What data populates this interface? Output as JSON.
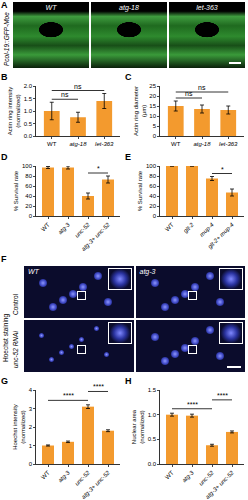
{
  "chart_data": [
    {
      "panel": "B",
      "type": "bar",
      "ylabel": "Actin ring intensity (normalized)",
      "categories": [
        "WT",
        "atg-18",
        "let-363"
      ],
      "values": [
        1.0,
        0.75,
        1.4
      ],
      "errors": [
        0.35,
        0.2,
        0.3
      ],
      "color": "#f39a2e",
      "ylim": [
        0,
        2.0
      ],
      "yticks": [
        {
          "value": 0,
          "label": "0.0"
        },
        {
          "value": 0.5,
          "label": "0.5"
        },
        {
          "value": 1.0,
          "label": "1.0"
        },
        {
          "value": 1.5,
          "label": "1.5"
        },
        {
          "value": 2.0,
          "label": "2.0"
        }
      ],
      "significance": [
        {
          "from": 0,
          "to": 1,
          "label": "ns"
        },
        {
          "from": 0,
          "to": 2,
          "label": "ns"
        }
      ]
    },
    {
      "panel": "C",
      "type": "bar",
      "ylabel": "Actin ring diameter (μm)",
      "categories": [
        "WT",
        "atg-18",
        "let-363"
      ],
      "values": [
        15,
        13.5,
        13
      ],
      "errors": [
        2.5,
        2,
        2
      ],
      "color": "#f39a2e",
      "ylim": [
        0,
        25
      ],
      "yticks": [
        0,
        5,
        10,
        15,
        20,
        25
      ],
      "significance": [
        {
          "from": 0,
          "to": 1,
          "label": "ns"
        },
        {
          "from": 0,
          "to": 2,
          "label": "ns"
        }
      ]
    },
    {
      "panel": "D",
      "type": "bar",
      "ylabel": "% Survival rate",
      "categories": [
        "WT",
        "atg-3",
        "unc-52",
        "atg-3+ unc-52"
      ],
      "values": [
        97,
        97,
        40,
        73
      ],
      "errors": [
        2,
        3,
        6,
        7
      ],
      "color": "#f39a2e",
      "ylim": [
        0,
        100
      ],
      "yticks": [
        0,
        20,
        40,
        60,
        80,
        100
      ],
      "significance": [
        {
          "from": 2,
          "to": 3,
          "label": "*"
        }
      ]
    },
    {
      "panel": "E",
      "type": "bar",
      "ylabel": "% Survival rate",
      "categories": [
        "WT",
        "glt-2",
        "mup-4",
        "glt-2+ mup-4"
      ],
      "values": [
        100,
        100,
        75,
        47
      ],
      "errors": [
        0,
        0,
        4,
        7
      ],
      "color": "#f39a2e",
      "ylim": [
        0,
        100
      ],
      "yticks": [
        0,
        20,
        40,
        60,
        80,
        100
      ],
      "significance": [
        {
          "from": 2,
          "to": 3,
          "label": "*"
        }
      ]
    },
    {
      "panel": "G",
      "type": "bar",
      "ylabel": "Hoechst intensity (normalized)",
      "categories": [
        "WT",
        "atg-3",
        "unc-52",
        "atg-3+ unc-52"
      ],
      "values": [
        1.0,
        1.2,
        3.1,
        1.8
      ],
      "errors": [
        0.03,
        0.04,
        0.1,
        0.05
      ],
      "color": "#f39a2e",
      "ylim": [
        0,
        4
      ],
      "yticks": [
        0,
        1,
        2,
        3,
        4
      ],
      "significance": [
        {
          "from": 0,
          "to": 2,
          "label": "****"
        },
        {
          "from": 2,
          "to": 3,
          "label": "****"
        }
      ]
    },
    {
      "panel": "H",
      "type": "bar",
      "ylabel": "Nuclear area (normalized)",
      "categories": [
        "WT",
        "atg-3",
        "unc-52",
        "atg-3+ unc-52"
      ],
      "values": [
        1.0,
        0.98,
        0.38,
        0.65
      ],
      "errors": [
        0.03,
        0.03,
        0.02,
        0.02
      ],
      "color": "#f39a2e",
      "ylim": [
        0,
        1.5
      ],
      "yticks": [
        {
          "value": 0,
          "label": "0.0"
        },
        {
          "value": 0.5,
          "label": "0.5"
        },
        {
          "value": 1.0,
          "label": "1.0"
        },
        {
          "value": 1.5,
          "label": "1.5"
        }
      ],
      "significance": [
        {
          "from": 0,
          "to": 2,
          "label": "****"
        },
        {
          "from": 2,
          "to": 3,
          "label": "****"
        }
      ]
    }
  ],
  "images": [
    {
      "panel": "A",
      "title": "Pcol-19::GFP-Moe",
      "columns": [
        "WT",
        "atg-18",
        "let-363"
      ]
    },
    {
      "panel": "F",
      "title": "Hoechst staining",
      "columns": [
        "WT",
        "atg-3"
      ],
      "rows": [
        "Control",
        "unc-52 RNAi"
      ]
    }
  ]
}
